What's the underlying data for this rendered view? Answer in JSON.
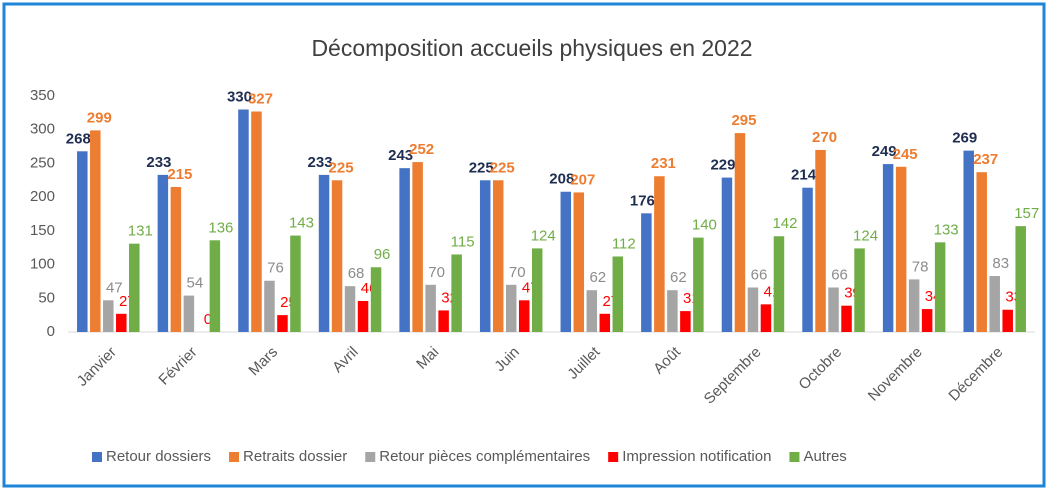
{
  "chart_data": {
    "type": "bar",
    "title": "Décomposition accueils physiques en 2022",
    "categories": [
      "Janvier",
      "Février",
      "Mars",
      "Avril",
      "Mai",
      "Juin",
      "Juillet",
      "Août",
      "Septembre",
      "Octobre",
      "Novembre",
      "Décembre"
    ],
    "series": [
      {
        "name": "Retour dossiers",
        "color": "#4472c4",
        "label_color": "#1f2d50",
        "values": [
          268,
          233,
          330,
          233,
          243,
          225,
          208,
          176,
          229,
          214,
          249,
          269
        ]
      },
      {
        "name": "Retraits dossier",
        "color": "#ed7d31",
        "label_color": "#ed7d31",
        "values": [
          299,
          215,
          327,
          225,
          252,
          225,
          207,
          231,
          295,
          270,
          245,
          237
        ]
      },
      {
        "name": "Retour pièces complémentaires",
        "color": "#a5a5a5",
        "label_color": "#8c8c8c",
        "values": [
          47,
          54,
          76,
          68,
          70,
          70,
          62,
          62,
          66,
          66,
          78,
          83
        ]
      },
      {
        "name": "Impression notification",
        "color": "#ff0000",
        "label_color": "#ff0000",
        "values": [
          27,
          0,
          25,
          46,
          32,
          47,
          27,
          31,
          41,
          39,
          34,
          33
        ]
      },
      {
        "name": "Autres",
        "color": "#70ad47",
        "label_color": "#70ad47",
        "values": [
          131,
          136,
          143,
          96,
          115,
          124,
          112,
          140,
          142,
          124,
          133,
          157
        ]
      }
    ],
    "ylim": [
      0,
      350
    ],
    "yticks": [
      0,
      50,
      100,
      150,
      200,
      250,
      300,
      350
    ],
    "grid": false,
    "legend": "bottom"
  }
}
